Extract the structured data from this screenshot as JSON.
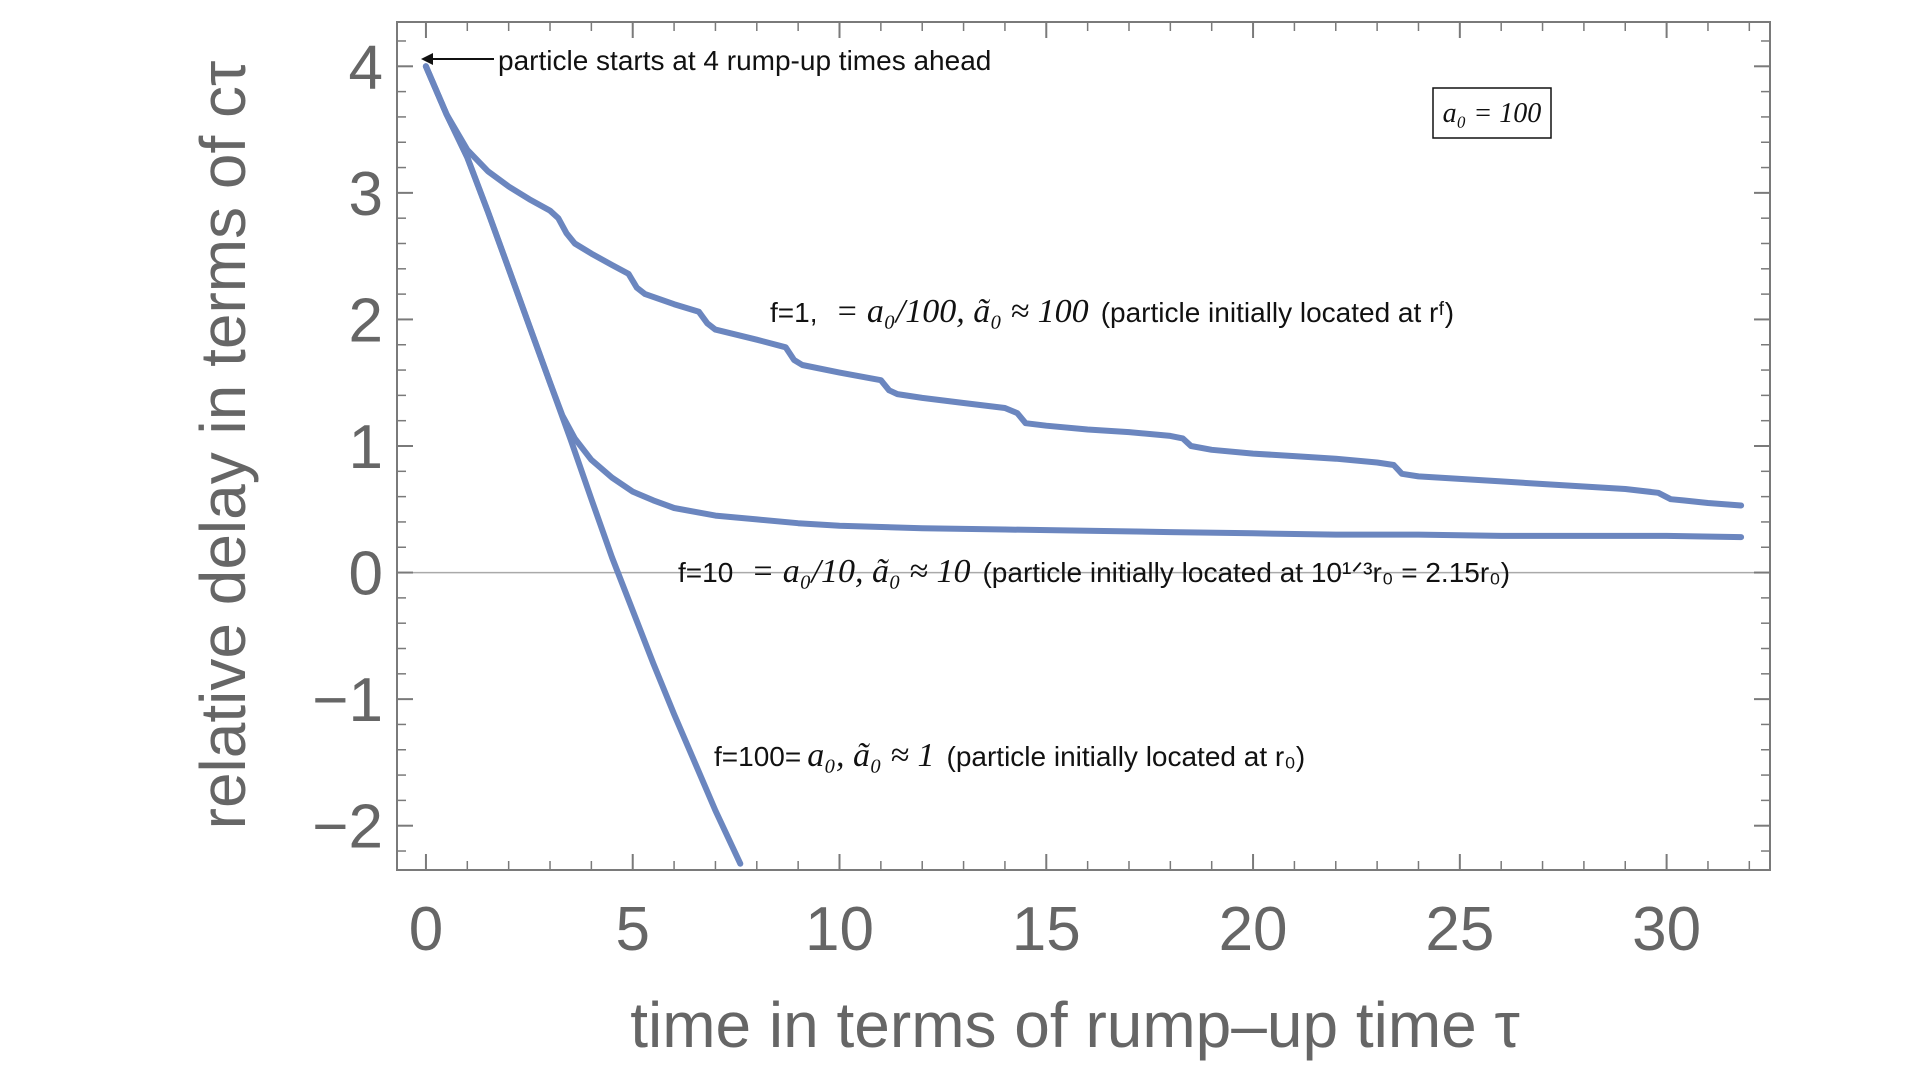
{
  "chart_data": {
    "type": "line",
    "title": "",
    "xlabel": "time in terms of rump–up time τ",
    "ylabel": "relative delay in terms of cτ",
    "xlim": [
      -0.7,
      32.5
    ],
    "ylim": [
      -2.35,
      4.35
    ],
    "xticks": [
      0,
      5,
      10,
      15,
      20,
      25,
      30
    ],
    "yticks": [
      -2,
      -1,
      0,
      1,
      2,
      3,
      4
    ],
    "xtick_labels": [
      "0",
      "5",
      "10",
      "15",
      "20",
      "25",
      "30"
    ],
    "ytick_labels": [
      "−2",
      "−1",
      "0",
      "1",
      "2",
      "3",
      "4"
    ],
    "grid": false,
    "zero_line": true,
    "line_color": "#6b86bf",
    "frame_color": "#7a7a7a",
    "inset_box": "a₀ = 100",
    "annotations": {
      "start": "particle starts at 4 rump-up times ahead",
      "f1_prefix": "f=1,",
      "f1_math": "= a₀/100, ã₀ ≈ 100",
      "f1_suffix": "(particle initially located at rᶠ)",
      "f10_prefix": "f=10",
      "f10_math": "= a₀/10, ã₀ ≈ 10",
      "f10_suffix": "(particle initially located at 10¹ᐟ³r₀ = 2.15r₀)",
      "f100_prefix": "f=100=",
      "f100_math": "a₀, ã₀ ≈ 1",
      "f100_suffix": "(particle initially located at r₀)"
    },
    "series": [
      {
        "name": "f=1",
        "x": [
          0,
          0.5,
          1,
          1.5,
          2,
          2.5,
          3,
          3.2,
          3.4,
          3.6,
          4,
          4.5,
          4.9,
          5.1,
          5.3,
          6,
          6.6,
          6.8,
          7,
          8,
          8.7,
          8.9,
          9.1,
          10,
          11,
          11.2,
          11.4,
          12,
          13,
          14,
          14.3,
          14.5,
          15,
          16,
          17,
          18,
          18.3,
          18.5,
          19,
          20,
          21,
          22,
          23,
          23.4,
          23.6,
          24,
          25,
          26,
          27,
          28,
          29,
          29.8,
          30.1,
          30.4,
          31,
          31.8
        ],
        "y": [
          4,
          3.62,
          3.34,
          3.17,
          3.05,
          2.95,
          2.86,
          2.8,
          2.68,
          2.6,
          2.52,
          2.43,
          2.36,
          2.25,
          2.2,
          2.12,
          2.06,
          1.97,
          1.92,
          1.84,
          1.78,
          1.68,
          1.64,
          1.58,
          1.52,
          1.44,
          1.41,
          1.38,
          1.34,
          1.3,
          1.26,
          1.18,
          1.16,
          1.13,
          1.11,
          1.08,
          1.06,
          1,
          0.97,
          0.94,
          0.92,
          0.9,
          0.87,
          0.85,
          0.78,
          0.76,
          0.74,
          0.72,
          0.7,
          0.68,
          0.66,
          0.63,
          0.58,
          0.57,
          0.55,
          0.53
        ]
      },
      {
        "name": "f=10",
        "x": [
          0,
          0.5,
          1,
          1.5,
          2,
          2.5,
          3,
          3.3,
          3.6,
          4,
          4.5,
          5,
          5.5,
          6,
          7,
          8,
          9,
          10,
          12,
          14,
          16,
          18,
          20,
          22,
          24,
          26,
          28,
          30,
          31.8
        ],
        "y": [
          4,
          3.62,
          3.28,
          2.85,
          2.4,
          1.95,
          1.5,
          1.24,
          1.06,
          0.89,
          0.75,
          0.64,
          0.57,
          0.51,
          0.45,
          0.42,
          0.39,
          0.37,
          0.35,
          0.34,
          0.33,
          0.32,
          0.31,
          0.3,
          0.3,
          0.29,
          0.29,
          0.29,
          0.28
        ]
      },
      {
        "name": "f=100",
        "x": [
          0,
          0.5,
          1,
          1.5,
          2,
          2.5,
          3,
          3.5,
          4,
          4.5,
          5,
          5.5,
          6,
          6.5,
          7,
          7.6
        ],
        "y": [
          4,
          3.62,
          3.28,
          2.85,
          2.4,
          1.95,
          1.5,
          1.05,
          0.58,
          0.12,
          -0.3,
          -0.72,
          -1.12,
          -1.5,
          -1.88,
          -2.3
        ]
      }
    ]
  }
}
